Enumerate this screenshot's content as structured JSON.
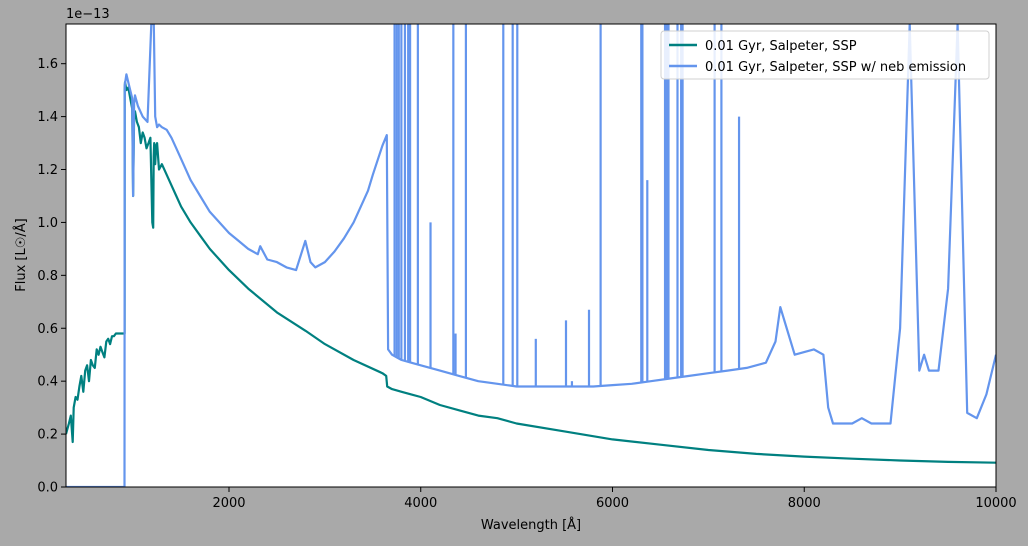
{
  "chart_data": {
    "type": "line",
    "xlabel": "Wavelength [Å]",
    "ylabel": "Flux [L☉/Å]",
    "y_offset_text": "1e−13",
    "xlim": [
      300,
      10000
    ],
    "ylim": [
      0,
      1.75
    ],
    "x_scale": "linear",
    "y_units": "1e-13",
    "xticks": [
      2000,
      4000,
      6000,
      8000,
      10000
    ],
    "xtick_labels": [
      "2000",
      "4000",
      "6000",
      "8000",
      "10000"
    ],
    "yticks": [
      0.0,
      0.2,
      0.4,
      0.6,
      0.8,
      1.0,
      1.2,
      1.4,
      1.6
    ],
    "ytick_labels": [
      "0.0",
      "0.2",
      "0.4",
      "0.6",
      "0.8",
      "1.0",
      "1.2",
      "1.4",
      "1.6"
    ],
    "grid": false,
    "legend_position": "top-right",
    "series": [
      {
        "name": "0.01 Gyr, Salpeter, SSP",
        "color": "#008080",
        "x": [
          300,
          330,
          350,
          370,
          380,
          400,
          420,
          440,
          460,
          480,
          500,
          520,
          540,
          560,
          580,
          600,
          620,
          640,
          660,
          680,
          700,
          720,
          740,
          760,
          780,
          800,
          820,
          840,
          860,
          880,
          900,
          911,
          912,
          915,
          930,
          950,
          970,
          990,
          1000,
          1010,
          1020,
          1040,
          1060,
          1080,
          1100,
          1120,
          1140,
          1160,
          1180,
          1200,
          1210,
          1215,
          1220,
          1230,
          1240,
          1250,
          1270,
          1300,
          1350,
          1400,
          1450,
          1500,
          1600,
          1700,
          1800,
          1900,
          2000,
          2200,
          2500,
          2800,
          3000,
          3300,
          3600,
          3640,
          3650,
          3700,
          3800,
          3900,
          4000,
          4200,
          4400,
          4600,
          4800,
          5000,
          5500,
          6000,
          6500,
          7000,
          7500,
          8000,
          8500,
          9000,
          9500,
          10000
        ],
        "y": [
          0.2,
          0.24,
          0.27,
          0.17,
          0.3,
          0.34,
          0.33,
          0.38,
          0.42,
          0.36,
          0.44,
          0.46,
          0.4,
          0.48,
          0.46,
          0.45,
          0.52,
          0.5,
          0.53,
          0.51,
          0.49,
          0.55,
          0.56,
          0.54,
          0.57,
          0.57,
          0.58,
          0.58,
          0.58,
          0.58,
          0.58,
          0.58,
          1.5,
          1.53,
          1.5,
          1.51,
          1.47,
          1.43,
          1.1,
          1.4,
          1.42,
          1.38,
          1.36,
          1.3,
          1.34,
          1.32,
          1.28,
          1.3,
          1.32,
          1.0,
          0.98,
          1.25,
          1.3,
          1.22,
          1.29,
          1.3,
          1.2,
          1.22,
          1.18,
          1.14,
          1.1,
          1.06,
          1.0,
          0.95,
          0.9,
          0.86,
          0.82,
          0.75,
          0.66,
          0.59,
          0.54,
          0.48,
          0.43,
          0.42,
          0.38,
          0.37,
          0.36,
          0.35,
          0.34,
          0.31,
          0.29,
          0.27,
          0.26,
          0.24,
          0.21,
          0.18,
          0.16,
          0.14,
          0.125,
          0.115,
          0.107,
          0.1,
          0.095,
          0.092
        ]
      },
      {
        "name": "0.01 Gyr, Salpeter, SSP w/ neb emission",
        "color": "#6495ed",
        "x": [
          300,
          910,
          912,
          913,
          930,
          950,
          970,
          990,
          1000,
          1010,
          1020,
          1050,
          1100,
          1150,
          1190,
          1215,
          1216,
          1230,
          1250,
          1270,
          1300,
          1350,
          1400,
          1450,
          1500,
          1600,
          1700,
          1800,
          1900,
          2000,
          2100,
          2200,
          2300,
          2326,
          2400,
          2500,
          2600,
          2700,
          2796,
          2850,
          2900,
          3000,
          3100,
          3200,
          3300,
          3400,
          3450,
          3500,
          3600,
          3646,
          3660,
          3700,
          3750,
          3800,
          3900,
          4000,
          4200,
          4400,
          4600,
          4800,
          5000,
          5200,
          5400,
          5600,
          5800,
          6000,
          6200,
          6400,
          6600,
          6800,
          7000,
          7200,
          7400,
          7600,
          7700,
          7750,
          7800,
          7900,
          8000,
          8100,
          8200,
          8250,
          8300,
          8500,
          8600,
          8700,
          8800,
          8900,
          9000,
          9100,
          9200,
          9250,
          9300,
          9400,
          9500,
          9600,
          9700,
          9800,
          9900,
          10000
        ],
        "y": [
          0.0,
          0.0,
          1.45,
          1.52,
          1.56,
          1.53,
          1.5,
          1.47,
          1.1,
          1.45,
          1.48,
          1.44,
          1.4,
          1.38,
          1.75,
          1.75,
          1.75,
          1.4,
          1.36,
          1.37,
          1.36,
          1.35,
          1.32,
          1.28,
          1.24,
          1.16,
          1.1,
          1.04,
          1.0,
          0.96,
          0.93,
          0.9,
          0.88,
          0.91,
          0.86,
          0.85,
          0.83,
          0.82,
          0.93,
          0.85,
          0.83,
          0.85,
          0.89,
          0.94,
          1.0,
          1.08,
          1.12,
          1.18,
          1.29,
          1.33,
          0.52,
          0.5,
          0.49,
          0.48,
          0.47,
          0.46,
          0.44,
          0.42,
          0.4,
          0.39,
          0.38,
          0.38,
          0.38,
          0.38,
          0.38,
          0.385,
          0.39,
          0.4,
          0.41,
          0.42,
          0.43,
          0.44,
          0.45,
          0.47,
          0.55,
          0.68,
          0.62,
          0.5,
          0.51,
          0.52,
          0.5,
          0.3,
          0.24,
          0.24,
          0.26,
          0.24,
          0.24,
          0.24,
          0.6,
          1.75,
          0.44,
          0.5,
          0.44,
          0.44,
          0.75,
          1.75,
          0.28,
          0.26,
          0.35,
          0.5
        ]
      }
    ],
    "emission_lines": {
      "series_index": 1,
      "x": [
        1216,
        3727,
        3750,
        3771,
        3798,
        3835,
        3869,
        3889,
        3970,
        4102,
        4340,
        4363,
        4471,
        4861,
        4959,
        5007,
        5200,
        5515,
        5577,
        5755,
        5876,
        6300,
        6312,
        6363,
        6548,
        6563,
        6584,
        6678,
        6716,
        6731,
        7065,
        7136,
        7320
      ],
      "peak": [
        1.75,
        1.75,
        1.75,
        1.75,
        1.75,
        1.75,
        1.75,
        1.75,
        1.75,
        1.0,
        1.75,
        0.58,
        1.75,
        1.75,
        1.75,
        1.75,
        0.56,
        0.63,
        0.4,
        0.67,
        1.75,
        1.75,
        1.75,
        1.16,
        1.75,
        1.75,
        1.75,
        1.75,
        1.75,
        1.75,
        1.75,
        1.75,
        1.4
      ]
    }
  }
}
